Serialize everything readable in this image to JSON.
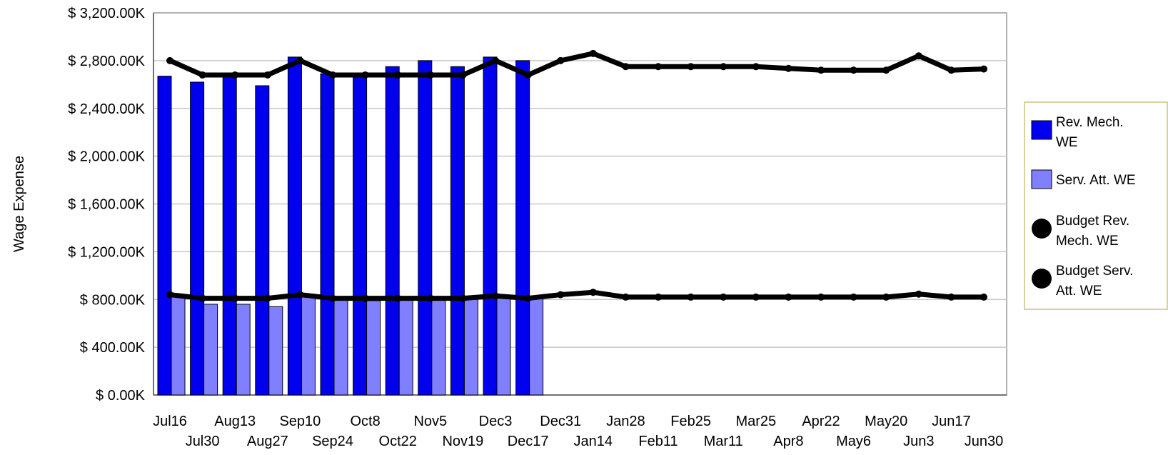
{
  "chart_data": {
    "type": "bar",
    "ylabel": "Wage Expense",
    "xlabel": "",
    "title": "",
    "ylim": [
      0,
      3200
    ],
    "y_ticks": [
      "$ 0.00K",
      "$ 400.00K",
      "$ 800.00K",
      "$ 1,200.00K",
      "$ 1,600.00K",
      "$ 2,000.00K",
      "$ 2,400.00K",
      "$ 2,800.00K",
      "$ 3,200.00K"
    ],
    "grid": true,
    "legend_position": "right",
    "categories": [
      "Jul16",
      "Jul30",
      "Aug13",
      "Aug27",
      "Sep10",
      "Sep24",
      "Oct8",
      "Oct22",
      "Nov5",
      "Nov19",
      "Dec3",
      "Dec17",
      "Dec31",
      "Jan14",
      "Jan28",
      "Feb11",
      "Feb25",
      "Mar11",
      "Mar25",
      "Apr8",
      "Apr22",
      "May6",
      "May20",
      "Jun3",
      "Jun17",
      "Jun30"
    ],
    "bar_series": [
      {
        "name": "Rev. Mech. WE",
        "color": "#0000ee",
        "values": [
          2670,
          2620,
          2690,
          2590,
          2830,
          2690,
          2690,
          2750,
          2800,
          2750,
          2830,
          2800,
          null,
          null,
          null,
          null,
          null,
          null,
          null,
          null,
          null,
          null,
          null,
          null,
          null,
          null
        ]
      },
      {
        "name": "Serv. Att. WE",
        "color": "#8080ff",
        "values": [
          820,
          760,
          760,
          740,
          820,
          800,
          790,
          800,
          800,
          800,
          810,
          810,
          null,
          null,
          null,
          null,
          null,
          null,
          null,
          null,
          null,
          null,
          null,
          null,
          null,
          null
        ]
      }
    ],
    "line_series": [
      {
        "name": "Budget Rev. Mech. WE",
        "color": "#000000",
        "values": [
          2800,
          2680,
          2680,
          2680,
          2800,
          2680,
          2680,
          2680,
          2680,
          2680,
          2800,
          2680,
          2800,
          2860,
          2750,
          2750,
          2750,
          2750,
          2750,
          2735,
          2720,
          2720,
          2720,
          2840,
          2720,
          2730
        ]
      },
      {
        "name": "Budget Serv. Att. WE",
        "color": "#000000",
        "values": [
          840,
          810,
          810,
          810,
          840,
          810,
          810,
          810,
          810,
          810,
          830,
          810,
          840,
          860,
          820,
          820,
          820,
          820,
          820,
          820,
          820,
          820,
          820,
          845,
          820,
          820
        ]
      }
    ],
    "legend": [
      {
        "label_lines": [
          "Rev. Mech.",
          "WE"
        ],
        "swatch": "rect",
        "color": "#0000ee"
      },
      {
        "label_lines": [
          "Serv. Att. WE"
        ],
        "swatch": "rect",
        "color": "#8080ff"
      },
      {
        "label_lines": [
          "Budget Rev.",
          "Mech. WE"
        ],
        "swatch": "dot",
        "color": "#000000"
      },
      {
        "label_lines": [
          "Budget Serv.",
          "Att. WE"
        ],
        "swatch": "dot",
        "color": "#000000"
      }
    ]
  }
}
